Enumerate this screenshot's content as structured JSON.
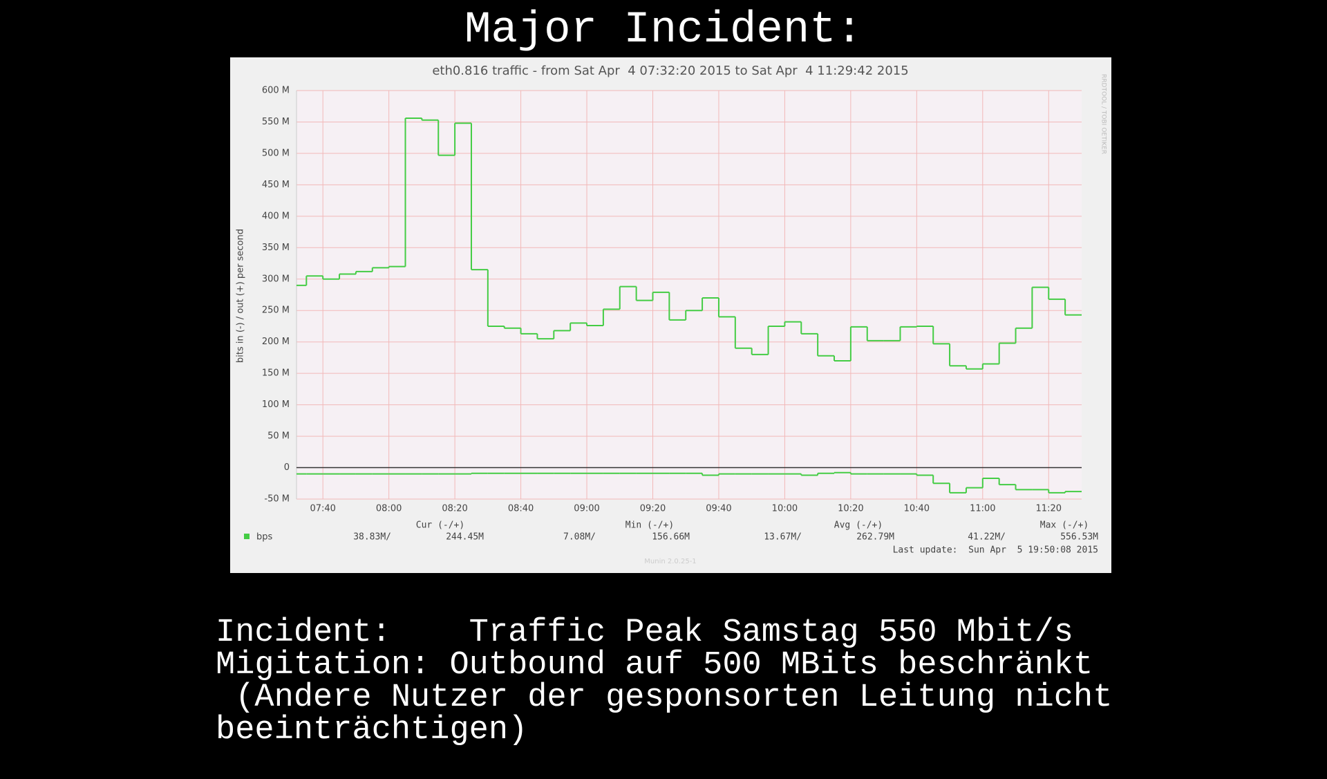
{
  "slide": {
    "title": "Major Incident:",
    "lines": [
      "Incident:    Traffic Peak Samstag 550 Mbit/s",
      "Migitation: Outbound auf 500 MBits beschränkt",
      " (Andere Nutzer der gesponsorten Leitung nicht",
      "beeinträchtigen)"
    ]
  },
  "chart_data": {
    "type": "line",
    "step": true,
    "title": "eth0.816 traffic - from Sat Apr  4 07:32:20 2015 to Sat Apr  4 11:29:42 2015",
    "y_label": "bits in (-) / out (+) per second",
    "x": [
      "07:35",
      "07:40",
      "07:45",
      "07:50",
      "07:55",
      "08:00",
      "08:05",
      "08:10",
      "08:15",
      "08:20",
      "08:25",
      "08:30",
      "08:35",
      "08:40",
      "08:45",
      "08:50",
      "08:55",
      "09:00",
      "09:05",
      "09:10",
      "09:15",
      "09:20",
      "09:25",
      "09:30",
      "09:35",
      "09:40",
      "09:45",
      "09:50",
      "09:55",
      "10:00",
      "10:05",
      "10:10",
      "10:15",
      "10:20",
      "10:25",
      "10:30",
      "10:35",
      "10:40",
      "10:45",
      "10:50",
      "10:55",
      "11:00",
      "11:05",
      "11:10",
      "11:15",
      "11:20",
      "11:25",
      "11:30"
    ],
    "series": [
      {
        "name": "bps",
        "color": "#44cc44",
        "values": [
          290,
          305,
          300,
          308,
          312,
          318,
          320,
          556,
          553,
          497,
          548,
          315,
          225,
          222,
          213,
          205,
          218,
          230,
          226,
          252,
          288,
          266,
          279,
          235,
          250,
          270,
          240,
          190,
          180,
          225,
          232,
          213,
          178,
          170,
          224,
          202,
          202,
          224,
          225,
          197,
          162,
          157,
          165,
          198,
          222,
          287,
          268,
          243
        ]
      },
      {
        "color": "#44cc44",
        "values": [
          -10,
          -10,
          -10,
          -10,
          -10,
          -10,
          -10,
          -10,
          -10,
          -10,
          -10,
          -9,
          -9,
          -9,
          -9,
          -9,
          -9,
          -9,
          -9,
          -9,
          -9,
          -9,
          -9,
          -9,
          -9,
          -12,
          -10,
          -10,
          -10,
          -10,
          -10,
          -12,
          -9,
          -8,
          -10,
          -10,
          -10,
          -10,
          -12,
          -25,
          -40,
          -32,
          -17,
          -27,
          -35,
          -35,
          -40,
          -38
        ]
      }
    ],
    "xlim": [
      "07:32",
      "11:30"
    ],
    "xticks": [
      "07:40",
      "08:00",
      "08:20",
      "08:40",
      "09:00",
      "09:20",
      "09:40",
      "10:00",
      "10:20",
      "10:40",
      "11:00",
      "11:20"
    ],
    "ylim": [
      -50,
      600
    ],
    "yticks": [
      {
        "value": -50,
        "label": "-50 M"
      },
      0,
      {
        "value": 50,
        "label": "50 M"
      },
      {
        "value": 100,
        "label": "100 M"
      },
      {
        "value": 150,
        "label": "150 M"
      },
      {
        "value": 200,
        "label": "200 M"
      },
      {
        "value": 250,
        "label": "250 M"
      },
      {
        "value": 300,
        "label": "300 M"
      },
      {
        "value": 350,
        "label": "350 M"
      },
      {
        "value": 400,
        "label": "400 M"
      },
      {
        "value": 450,
        "label": "450 M"
      },
      {
        "value": 500,
        "label": "500 M"
      },
      {
        "value": 550,
        "label": "550 M"
      },
      {
        "value": 600,
        "label": "600 M"
      }
    ],
    "grid": true,
    "legend_stats": {
      "headers": [
        "Cur (-/+)",
        "Min (-/+)",
        "Avg (-/+)",
        "Max (-/+)"
      ],
      "values": [
        [
          "38.83M/",
          "244.45M"
        ],
        [
          "7.08M/",
          "156.66M"
        ],
        [
          "13.67M/",
          "262.79M"
        ],
        [
          "41.22M/",
          "556.53M"
        ]
      ]
    },
    "last_update": "Last update:  Sun Apr  5 19:50:08 2015",
    "footer": "Munin 2.0.25-1",
    "watermark": "RRDTOOL / TOBI OETIKER"
  }
}
